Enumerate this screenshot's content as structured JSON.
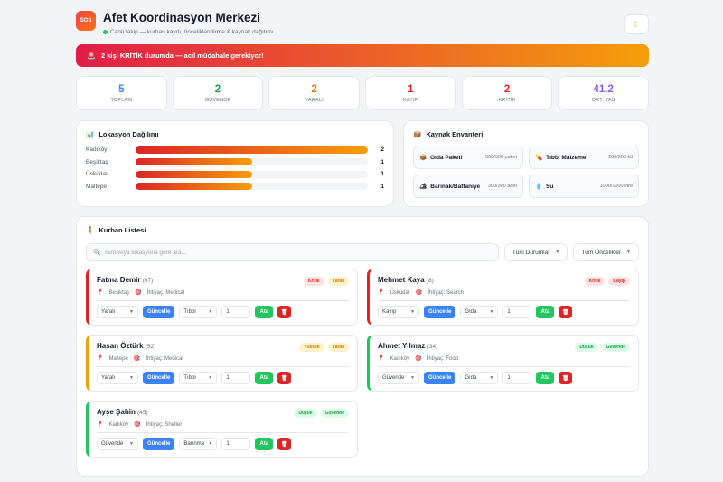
{
  "header": {
    "logo": "SOS",
    "title": "Afet Koordinasyon Merkezi",
    "subtitle": "Canlı takip — kurban kaydı, önceliklendirme & kaynak dağıtımı",
    "theme_icon": "moon-icon"
  },
  "alert": {
    "text": "2 kişi KRİTİK durumda — acil müdahale gerekiyor!"
  },
  "stats": [
    {
      "value": "5",
      "label": "TOPLAM",
      "color": "#3b82f6"
    },
    {
      "value": "2",
      "label": "GÜVENDE",
      "color": "#16a34a"
    },
    {
      "value": "2",
      "label": "YARALI",
      "color": "#d97706"
    },
    {
      "value": "1",
      "label": "KAYIP",
      "color": "#dc2626"
    },
    {
      "value": "2",
      "label": "KRİTİK",
      "color": "#dc2626"
    },
    {
      "value": "41.2",
      "label": "ORT. YAŞ",
      "color": "#8b5cf6"
    }
  ],
  "locations": {
    "title": "Lokasyon Dağılımı",
    "items": [
      {
        "name": "Kadıköy",
        "count": "2",
        "fraction": 1.0
      },
      {
        "name": "Beşiktaş",
        "count": "1",
        "fraction": 0.5
      },
      {
        "name": "Üsküdar",
        "count": "1",
        "fraction": 0.5
      },
      {
        "name": "Maltepe",
        "count": "1",
        "fraction": 0.5
      }
    ]
  },
  "inventory": {
    "title": "Kaynak Envanteri",
    "items": [
      {
        "name": "Gıda Paketi",
        "qty": "500/500 paket",
        "icon": "box-icon"
      },
      {
        "name": "Tıbbi Malzeme",
        "qty": "200/200 kit",
        "icon": "medical-icon"
      },
      {
        "name": "Barınak/Battaniye",
        "qty": "300/300 adet",
        "icon": "shelter-icon"
      },
      {
        "name": "Su",
        "qty": "1000/1000 litre",
        "icon": "water-icon"
      }
    ]
  },
  "victims": {
    "title": "Kurban Listesi",
    "search_placeholder": "İsim veya lokasyona göre ara...",
    "status_filter": "Tüm Durumlar",
    "priority_filter": "Tüm Öncelikler",
    "update_label": "Güncelle",
    "assign_label": "Ata",
    "list": [
      {
        "name": "Fatma Demir",
        "age": "(67)",
        "tag1": "Kritik",
        "tag2": "Yaralı",
        "location": "Beşiktaş",
        "need": "İhtiyaç: Medical",
        "status": "Yaralı",
        "resource": "Tıbbi",
        "qty": "1"
      },
      {
        "name": "Mehmet Kaya",
        "age": "(8)",
        "tag1": "Kritik",
        "tag2": "Kayıp",
        "location": "Üsküdar",
        "need": "İhtiyaç: Search",
        "status": "Kayıp",
        "resource": "Gıda",
        "qty": "1"
      },
      {
        "name": "Hasan Öztürk",
        "age": "(52)",
        "tag1": "Yüksek",
        "tag2": "Yaralı",
        "location": "Maltepe",
        "need": "İhtiyaç: Medical",
        "status": "Yaralı",
        "resource": "Tıbbi",
        "qty": "1"
      },
      {
        "name": "Ahmet Yılmaz",
        "age": "(34)",
        "tag1": "Düşük",
        "tag2": "Güvende",
        "location": "Kadıköy",
        "need": "İhtiyaç: Food",
        "status": "Güvende",
        "resource": "Gıda",
        "qty": "1"
      },
      {
        "name": "Ayşe Şahin",
        "age": "(45)",
        "tag1": "Düşük",
        "tag2": "Güvende",
        "location": "Kadıköy",
        "need": "İhtiyaç: Shelter",
        "status": "Güvende",
        "resource": "Barınma",
        "qty": "1"
      }
    ]
  }
}
